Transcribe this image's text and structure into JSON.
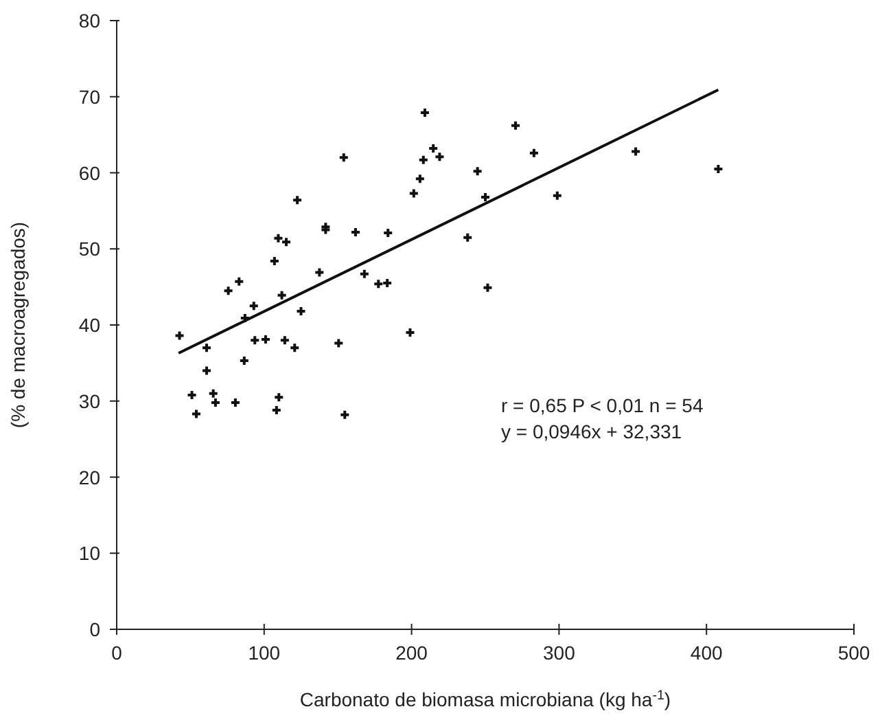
{
  "chart_data": {
    "type": "scatter",
    "xlabel": "Carbonato de biomasa microbiana (kg ha$^{-1}$)",
    "ylabel": "(% de macroagregados)",
    "xlim": [
      0,
      500
    ],
    "xticks": [
      0,
      100,
      200,
      300,
      400,
      500
    ],
    "ylim": [
      0,
      80
    ],
    "yticks": [
      0,
      10,
      20,
      30,
      40,
      50,
      60,
      70,
      80
    ],
    "grid": false,
    "marker": "cross",
    "annotations": [
      "r = 0,65 P < 0,01 n = 54",
      "y = 0,0946x + 32,331"
    ],
    "series": [
      {
        "color": "#111111",
        "x": [
          42.6,
          61,
          61,
          51,
          54,
          65.5,
          67,
          80.5,
          86.5,
          75.7,
          83,
          93,
          87,
          93.7,
          101,
          114,
          120.7,
          108.4,
          110,
          107,
          109.6,
          115,
          122.5,
          112,
          125,
          137.5,
          141.7,
          141.7,
          154,
          162,
          150.5,
          154.7,
          209,
          214.7,
          219,
          208,
          205.7,
          201.5,
          244.7,
          270.5,
          283,
          298.8,
          250,
          238,
          251.6,
          199,
          184,
          168,
          177.5,
          183.5,
          352,
          408
        ],
        "values": [
          38.6,
          37,
          34,
          30.8,
          28.3,
          31,
          29.8,
          29.8,
          35.3,
          44.5,
          45.7,
          42.5,
          40.9,
          38,
          38.1,
          38,
          37,
          28.8,
          30.5,
          48.4,
          51.4,
          50.9,
          56.4,
          43.9,
          41.8,
          46.9,
          52.5,
          52.9,
          62,
          52.2,
          37.6,
          28.2,
          67.9,
          63.2,
          62.1,
          61.7,
          59.2,
          57.3,
          60.2,
          66.2,
          62.6,
          57,
          56.8,
          51.5,
          44.9,
          39,
          52.1,
          46.7,
          45.4,
          45.5,
          62.8,
          60.5
        ]
      },
      {
        "type": "line",
        "color": "#111111",
        "marker": "none",
        "line_style": "solid",
        "x": [
          42,
          408
        ],
        "values": [
          36.3,
          70.9
        ]
      }
    ]
  }
}
